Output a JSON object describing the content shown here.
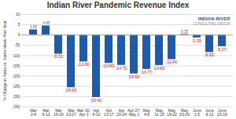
{
  "chart_data": {
    "type": "bar",
    "title": "Indian River Pandemic Revenue Index",
    "ylabel": "% Change in Sales vs. Same Week Prior Year",
    "categories": [
      "Mar\n2-8",
      "Mar\n9-13",
      "Mar\n16-20",
      "Mar\n23-27",
      "Mar 30-\nApr 3",
      "Apr\n6-10",
      "Apr\n13-17",
      "Apr\n20-24",
      "Apr 27-\nMay 1",
      "May\n4-8",
      "May\n11-15",
      "May\n18-22",
      "May\n20-29",
      "June\n1-5",
      "June\n8-12",
      "June\n15-19"
    ],
    "values": [
      2.55,
      4.45,
      -9.31,
      -25.63,
      -13.09,
      -30.4,
      -13.8,
      -14.73,
      -18.92,
      -16.77,
      -14.8,
      -11.94,
      0.35,
      -1.39,
      -8.52,
      -5.67
    ],
    "value_labels": [
      "2.55",
      "4.45",
      "(9.31)",
      "(25.63)",
      "(13.09)",
      "(30.40)",
      "(13.80)",
      "(14.73)",
      "(18.92)",
      "(16.77)",
      "(14.80)",
      "(11.94)",
      "0.35",
      "(1.39)",
      "(8.52)",
      "(5.67)"
    ],
    "data_labels": true,
    "color": "#1f5baa",
    "ylim": [
      -35,
      10
    ],
    "yticks": [
      10,
      5,
      0,
      {
        "value": -5,
        "label": "(5)"
      },
      {
        "value": -10,
        "label": "(10)"
      },
      {
        "value": -15,
        "label": "(15)"
      },
      {
        "value": -20,
        "label": "(20)"
      },
      {
        "value": -25,
        "label": "(25)"
      },
      {
        "value": -30,
        "label": "(30)"
      },
      {
        "value": -35,
        "label": "(35)"
      }
    ],
    "grid": true,
    "annotations": [
      "INDIAN RIVER",
      "CONSULTING GROUP"
    ]
  }
}
